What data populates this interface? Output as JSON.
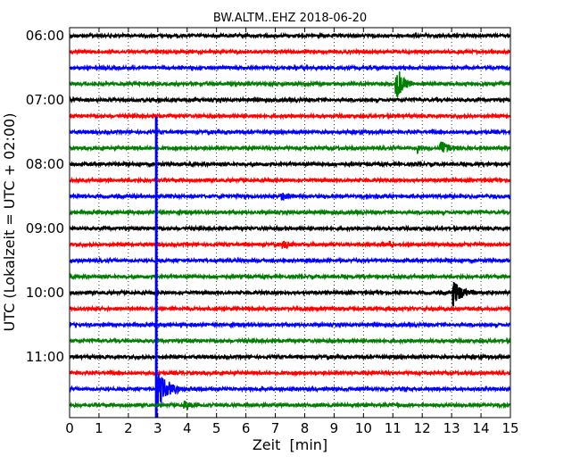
{
  "chart_data": {
    "type": "line",
    "title": "BW.ALTM..EHZ 2018-06-20",
    "xlabel": "Zeit  [min]",
    "ylabel": "UTC (Lokalzeit = UTC + 02:00)",
    "xlim": [
      0,
      15
    ],
    "x_ticks": [
      "0",
      "1",
      "2",
      "3",
      "4",
      "5",
      "6",
      "7",
      "8",
      "9",
      "10",
      "11",
      "12",
      "13",
      "14",
      "15"
    ],
    "y_ticks": [
      "06:00",
      "07:00",
      "08:00",
      "09:00",
      "10:00",
      "11:00"
    ],
    "y_tick_rows": [
      0,
      4,
      8,
      12,
      16,
      20
    ],
    "row_interval_minutes": 15,
    "grid": "vertical dotted at each minute",
    "colors": [
      "#000000",
      "#ff0000",
      "#0000ff",
      "#008000"
    ],
    "traces": [
      {
        "start": "06:00",
        "color": "#000000"
      },
      {
        "start": "06:15",
        "color": "#ff0000"
      },
      {
        "start": "06:30",
        "color": "#0000ff"
      },
      {
        "start": "06:45",
        "color": "#008000",
        "events": [
          {
            "minute": 11.1,
            "amp": 22,
            "decay": 0.25,
            "dir": 0
          }
        ]
      },
      {
        "start": "07:00",
        "color": "#000000"
      },
      {
        "start": "07:15",
        "color": "#ff0000"
      },
      {
        "start": "07:30",
        "color": "#0000ff"
      },
      {
        "start": "07:45",
        "color": "#008000",
        "events": [
          {
            "minute": 11.85,
            "amp": 9,
            "decay": 0.08,
            "dir": 0
          },
          {
            "minute": 12.6,
            "amp": 9,
            "decay": 0.35,
            "dir": 0
          }
        ]
      },
      {
        "start": "08:00",
        "color": "#000000"
      },
      {
        "start": "08:15",
        "color": "#ff0000"
      },
      {
        "start": "08:30",
        "color": "#0000ff",
        "events": [
          {
            "minute": 7.2,
            "amp": 5,
            "decay": 0.4,
            "dir": 0
          }
        ]
      },
      {
        "start": "08:45",
        "color": "#008000"
      },
      {
        "start": "09:00",
        "color": "#000000"
      },
      {
        "start": "09:15",
        "color": "#ff0000",
        "events": [
          {
            "minute": 7.25,
            "amp": 5,
            "decay": 0.3,
            "dir": 0
          },
          {
            "minute": 10.9,
            "amp": 4,
            "decay": 0.2,
            "dir": 0
          }
        ]
      },
      {
        "start": "09:30",
        "color": "#0000ff"
      },
      {
        "start": "09:45",
        "color": "#008000"
      },
      {
        "start": "10:00",
        "color": "#000000",
        "events": [
          {
            "minute": 13.05,
            "amp": 18,
            "decay": 0.3,
            "dir": 0
          }
        ]
      },
      {
        "start": "10:15",
        "color": "#ff0000"
      },
      {
        "start": "10:30",
        "color": "#0000ff"
      },
      {
        "start": "10:45",
        "color": "#008000"
      },
      {
        "start": "11:00",
        "color": "#000000"
      },
      {
        "start": "11:15",
        "color": "#ff0000"
      },
      {
        "start": "11:30",
        "color": "#0000ff",
        "events": [
          {
            "minute": 2.95,
            "amp": 0,
            "decay": 0,
            "dir": -1,
            "spike": [
              -305,
              33
            ]
          },
          {
            "minute": 3.0,
            "amp": 22,
            "decay": 0.35,
            "dir": 0
          }
        ]
      },
      {
        "start": "11:45",
        "color": "#008000",
        "events": [
          {
            "minute": 3.9,
            "amp": 5,
            "decay": 0.3,
            "dir": 0
          }
        ]
      }
    ]
  }
}
